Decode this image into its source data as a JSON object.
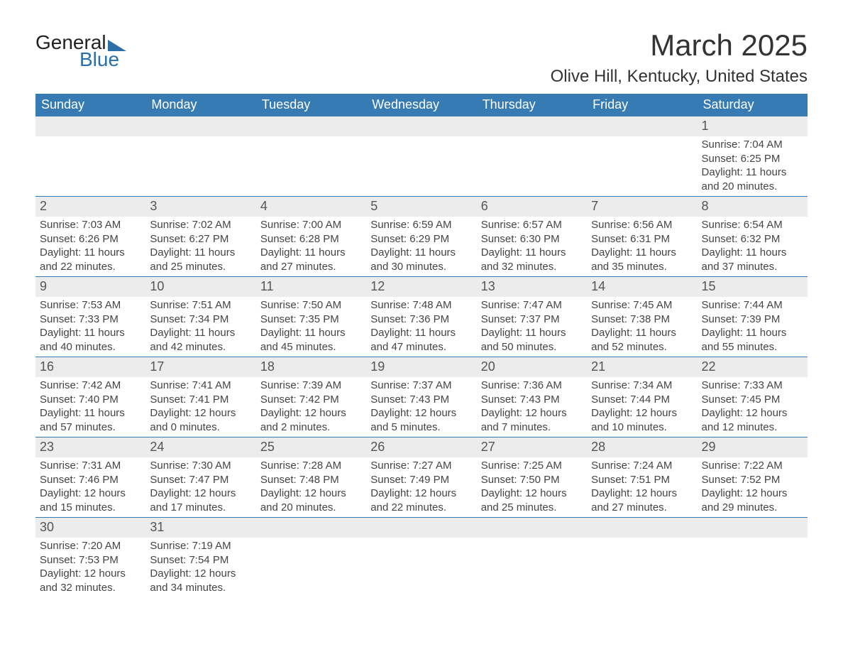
{
  "logo": {
    "textA": "General",
    "textB": "Blue"
  },
  "title": "March 2025",
  "location": "Olive Hill, Kentucky, United States",
  "colors": {
    "header_bg": "#377bb5",
    "header_text": "#ffffff",
    "band_bg": "#ececec",
    "row_border": "#377bb5",
    "logo_blue": "#2b6ea8"
  },
  "dayNames": [
    "Sunday",
    "Monday",
    "Tuesday",
    "Wednesday",
    "Thursday",
    "Friday",
    "Saturday"
  ],
  "weeks": [
    [
      {
        "n": "",
        "sr": "",
        "ss": "",
        "dl": ""
      },
      {
        "n": "",
        "sr": "",
        "ss": "",
        "dl": ""
      },
      {
        "n": "",
        "sr": "",
        "ss": "",
        "dl": ""
      },
      {
        "n": "",
        "sr": "",
        "ss": "",
        "dl": ""
      },
      {
        "n": "",
        "sr": "",
        "ss": "",
        "dl": ""
      },
      {
        "n": "",
        "sr": "",
        "ss": "",
        "dl": ""
      },
      {
        "n": "1",
        "sr": "Sunrise: 7:04 AM",
        "ss": "Sunset: 6:25 PM",
        "dl": "Daylight: 11 hours and 20 minutes."
      }
    ],
    [
      {
        "n": "2",
        "sr": "Sunrise: 7:03 AM",
        "ss": "Sunset: 6:26 PM",
        "dl": "Daylight: 11 hours and 22 minutes."
      },
      {
        "n": "3",
        "sr": "Sunrise: 7:02 AM",
        "ss": "Sunset: 6:27 PM",
        "dl": "Daylight: 11 hours and 25 minutes."
      },
      {
        "n": "4",
        "sr": "Sunrise: 7:00 AM",
        "ss": "Sunset: 6:28 PM",
        "dl": "Daylight: 11 hours and 27 minutes."
      },
      {
        "n": "5",
        "sr": "Sunrise: 6:59 AM",
        "ss": "Sunset: 6:29 PM",
        "dl": "Daylight: 11 hours and 30 minutes."
      },
      {
        "n": "6",
        "sr": "Sunrise: 6:57 AM",
        "ss": "Sunset: 6:30 PM",
        "dl": "Daylight: 11 hours and 32 minutes."
      },
      {
        "n": "7",
        "sr": "Sunrise: 6:56 AM",
        "ss": "Sunset: 6:31 PM",
        "dl": "Daylight: 11 hours and 35 minutes."
      },
      {
        "n": "8",
        "sr": "Sunrise: 6:54 AM",
        "ss": "Sunset: 6:32 PM",
        "dl": "Daylight: 11 hours and 37 minutes."
      }
    ],
    [
      {
        "n": "9",
        "sr": "Sunrise: 7:53 AM",
        "ss": "Sunset: 7:33 PM",
        "dl": "Daylight: 11 hours and 40 minutes."
      },
      {
        "n": "10",
        "sr": "Sunrise: 7:51 AM",
        "ss": "Sunset: 7:34 PM",
        "dl": "Daylight: 11 hours and 42 minutes."
      },
      {
        "n": "11",
        "sr": "Sunrise: 7:50 AM",
        "ss": "Sunset: 7:35 PM",
        "dl": "Daylight: 11 hours and 45 minutes."
      },
      {
        "n": "12",
        "sr": "Sunrise: 7:48 AM",
        "ss": "Sunset: 7:36 PM",
        "dl": "Daylight: 11 hours and 47 minutes."
      },
      {
        "n": "13",
        "sr": "Sunrise: 7:47 AM",
        "ss": "Sunset: 7:37 PM",
        "dl": "Daylight: 11 hours and 50 minutes."
      },
      {
        "n": "14",
        "sr": "Sunrise: 7:45 AM",
        "ss": "Sunset: 7:38 PM",
        "dl": "Daylight: 11 hours and 52 minutes."
      },
      {
        "n": "15",
        "sr": "Sunrise: 7:44 AM",
        "ss": "Sunset: 7:39 PM",
        "dl": "Daylight: 11 hours and 55 minutes."
      }
    ],
    [
      {
        "n": "16",
        "sr": "Sunrise: 7:42 AM",
        "ss": "Sunset: 7:40 PM",
        "dl": "Daylight: 11 hours and 57 minutes."
      },
      {
        "n": "17",
        "sr": "Sunrise: 7:41 AM",
        "ss": "Sunset: 7:41 PM",
        "dl": "Daylight: 12 hours and 0 minutes."
      },
      {
        "n": "18",
        "sr": "Sunrise: 7:39 AM",
        "ss": "Sunset: 7:42 PM",
        "dl": "Daylight: 12 hours and 2 minutes."
      },
      {
        "n": "19",
        "sr": "Sunrise: 7:37 AM",
        "ss": "Sunset: 7:43 PM",
        "dl": "Daylight: 12 hours and 5 minutes."
      },
      {
        "n": "20",
        "sr": "Sunrise: 7:36 AM",
        "ss": "Sunset: 7:43 PM",
        "dl": "Daylight: 12 hours and 7 minutes."
      },
      {
        "n": "21",
        "sr": "Sunrise: 7:34 AM",
        "ss": "Sunset: 7:44 PM",
        "dl": "Daylight: 12 hours and 10 minutes."
      },
      {
        "n": "22",
        "sr": "Sunrise: 7:33 AM",
        "ss": "Sunset: 7:45 PM",
        "dl": "Daylight: 12 hours and 12 minutes."
      }
    ],
    [
      {
        "n": "23",
        "sr": "Sunrise: 7:31 AM",
        "ss": "Sunset: 7:46 PM",
        "dl": "Daylight: 12 hours and 15 minutes."
      },
      {
        "n": "24",
        "sr": "Sunrise: 7:30 AM",
        "ss": "Sunset: 7:47 PM",
        "dl": "Daylight: 12 hours and 17 minutes."
      },
      {
        "n": "25",
        "sr": "Sunrise: 7:28 AM",
        "ss": "Sunset: 7:48 PM",
        "dl": "Daylight: 12 hours and 20 minutes."
      },
      {
        "n": "26",
        "sr": "Sunrise: 7:27 AM",
        "ss": "Sunset: 7:49 PM",
        "dl": "Daylight: 12 hours and 22 minutes."
      },
      {
        "n": "27",
        "sr": "Sunrise: 7:25 AM",
        "ss": "Sunset: 7:50 PM",
        "dl": "Daylight: 12 hours and 25 minutes."
      },
      {
        "n": "28",
        "sr": "Sunrise: 7:24 AM",
        "ss": "Sunset: 7:51 PM",
        "dl": "Daylight: 12 hours and 27 minutes."
      },
      {
        "n": "29",
        "sr": "Sunrise: 7:22 AM",
        "ss": "Sunset: 7:52 PM",
        "dl": "Daylight: 12 hours and 29 minutes."
      }
    ],
    [
      {
        "n": "30",
        "sr": "Sunrise: 7:20 AM",
        "ss": "Sunset: 7:53 PM",
        "dl": "Daylight: 12 hours and 32 minutes."
      },
      {
        "n": "31",
        "sr": "Sunrise: 7:19 AM",
        "ss": "Sunset: 7:54 PM",
        "dl": "Daylight: 12 hours and 34 minutes."
      },
      {
        "n": "",
        "sr": "",
        "ss": "",
        "dl": ""
      },
      {
        "n": "",
        "sr": "",
        "ss": "",
        "dl": ""
      },
      {
        "n": "",
        "sr": "",
        "ss": "",
        "dl": ""
      },
      {
        "n": "",
        "sr": "",
        "ss": "",
        "dl": ""
      },
      {
        "n": "",
        "sr": "",
        "ss": "",
        "dl": ""
      }
    ]
  ]
}
